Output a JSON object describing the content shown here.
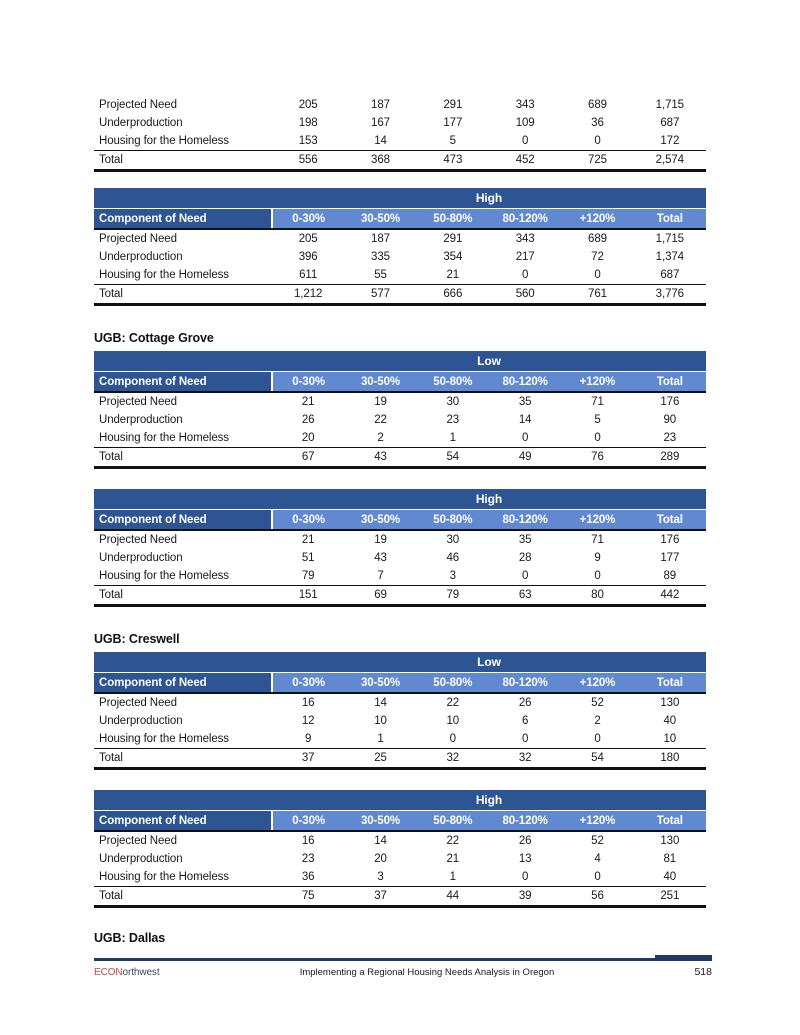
{
  "columns": {
    "label": "Component of Need",
    "bins": [
      "0-30%",
      "30-50%",
      "50-80%",
      "80-120%",
      "+120%",
      "Total"
    ]
  },
  "partial_table": {
    "rows": [
      {
        "label": "Projected Need",
        "values": [
          "205",
          "187",
          "291",
          "343",
          "689",
          "1,715"
        ]
      },
      {
        "label": "Underproduction",
        "values": [
          "198",
          "167",
          "177",
          "109",
          "36",
          "687"
        ]
      },
      {
        "label": "Housing for the Homeless",
        "values": [
          "153",
          "14",
          "5",
          "0",
          "0",
          "172"
        ]
      },
      {
        "label": "Total",
        "values": [
          "556",
          "368",
          "473",
          "452",
          "725",
          "2,574"
        ]
      }
    ]
  },
  "sections": [
    {
      "heading": "",
      "tables": [
        {
          "scenario": "High",
          "rows": [
            {
              "label": "Projected Need",
              "values": [
                "205",
                "187",
                "291",
                "343",
                "689",
                "1,715"
              ]
            },
            {
              "label": "Underproduction",
              "values": [
                "396",
                "335",
                "354",
                "217",
                "72",
                "1,374"
              ]
            },
            {
              "label": "Housing for the Homeless",
              "values": [
                "611",
                "55",
                "21",
                "0",
                "0",
                "687"
              ]
            },
            {
              "label": "Total",
              "values": [
                "1,212",
                "577",
                "666",
                "560",
                "761",
                "3,776"
              ]
            }
          ]
        }
      ]
    },
    {
      "heading": "UGB: Cottage Grove",
      "tables": [
        {
          "scenario": "Low",
          "rows": [
            {
              "label": "Projected Need",
              "values": [
                "21",
                "19",
                "30",
                "35",
                "71",
                "176"
              ]
            },
            {
              "label": "Underproduction",
              "values": [
                "26",
                "22",
                "23",
                "14",
                "5",
                "90"
              ]
            },
            {
              "label": "Housing for the Homeless",
              "values": [
                "20",
                "2",
                "1",
                "0",
                "0",
                "23"
              ]
            },
            {
              "label": "Total",
              "values": [
                "67",
                "43",
                "54",
                "49",
                "76",
                "289"
              ]
            }
          ]
        },
        {
          "scenario": "High",
          "rows": [
            {
              "label": "Projected Need",
              "values": [
                "21",
                "19",
                "30",
                "35",
                "71",
                "176"
              ]
            },
            {
              "label": "Underproduction",
              "values": [
                "51",
                "43",
                "46",
                "28",
                "9",
                "177"
              ]
            },
            {
              "label": "Housing for the Homeless",
              "values": [
                "79",
                "7",
                "3",
                "0",
                "0",
                "89"
              ]
            },
            {
              "label": "Total",
              "values": [
                "151",
                "69",
                "79",
                "63",
                "80",
                "442"
              ]
            }
          ]
        }
      ]
    },
    {
      "heading": "UGB: Creswell",
      "tables": [
        {
          "scenario": "Low",
          "rows": [
            {
              "label": "Projected Need",
              "values": [
                "16",
                "14",
                "22",
                "26",
                "52",
                "130"
              ]
            },
            {
              "label": "Underproduction",
              "values": [
                "12",
                "10",
                "10",
                "6",
                "2",
                "40"
              ]
            },
            {
              "label": "Housing for the Homeless",
              "values": [
                "9",
                "1",
                "0",
                "0",
                "0",
                "10"
              ]
            },
            {
              "label": "Total",
              "values": [
                "37",
                "25",
                "32",
                "32",
                "54",
                "180"
              ]
            }
          ]
        },
        {
          "scenario": "High",
          "rows": [
            {
              "label": "Projected Need",
              "values": [
                "16",
                "14",
                "22",
                "26",
                "52",
                "130"
              ]
            },
            {
              "label": "Underproduction",
              "values": [
                "23",
                "20",
                "21",
                "13",
                "4",
                "81"
              ]
            },
            {
              "label": "Housing for the Homeless",
              "values": [
                "36",
                "3",
                "1",
                "0",
                "0",
                "40"
              ]
            },
            {
              "label": "Total",
              "values": [
                "75",
                "37",
                "44",
                "39",
                "56",
                "251"
              ]
            }
          ]
        }
      ]
    },
    {
      "heading": "UGB: Dallas",
      "tables": []
    }
  ],
  "footer": {
    "logo_prefix": "ECON",
    "logo_suffix": "orthwest",
    "center_text": "Implementing a Regional Housing Needs Analysis in Oregon",
    "page_number": "518"
  },
  "colors": {
    "table_band_navy": "#2D5493",
    "table_header_light_blue": "#6189D2",
    "footer_rule_navy": "#1F3864",
    "logo_red": "#C6473E",
    "logo_dark": "#3D4A54"
  }
}
